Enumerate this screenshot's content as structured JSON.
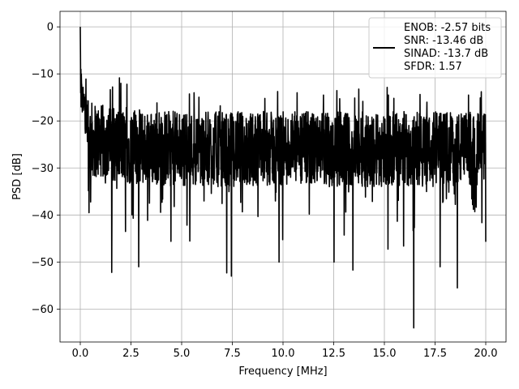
{
  "chart_data": {
    "type": "line",
    "xlabel": "Frequency [MHz]",
    "ylabel": "PSD [dB]",
    "xlim": [
      -1.0,
      21.0
    ],
    "ylim": [
      -67.0,
      3.3
    ],
    "xticks": [
      0.0,
      2.5,
      5.0,
      7.5,
      10.0,
      12.5,
      15.0,
      17.5,
      20.0
    ],
    "xtick_labels": [
      "0.0",
      "2.5",
      "5.0",
      "7.5",
      "10.0",
      "12.5",
      "15.0",
      "17.5",
      "20.0"
    ],
    "yticks": [
      0,
      -10,
      -20,
      -30,
      -40,
      -50,
      -60
    ],
    "ytick_labels": [
      "0",
      "−10",
      "−20",
      "−30",
      "−40",
      "−50",
      "−60"
    ],
    "grid": true,
    "legend_position": "top-right",
    "series": [
      {
        "color": "#000000",
        "x_start": 0.0,
        "x_end": 20.0,
        "points": 2000,
        "peak": [
          0.0,
          0.0
        ],
        "noise_floor_range": [
          -17,
          -35
        ],
        "notable_dips": [
          [
            0.43,
            -39.5
          ],
          [
            1.55,
            -52.2
          ],
          [
            2.88,
            -51.0
          ],
          [
            4.47,
            -45.6
          ],
          [
            7.22,
            -52.3
          ],
          [
            7.45,
            -53.0
          ],
          [
            9.8,
            -50.0
          ],
          [
            12.52,
            -50.0
          ],
          [
            13.45,
            -51.7
          ],
          [
            16.45,
            -64.0
          ],
          [
            17.75,
            -51.0
          ],
          [
            18.6,
            -55.5
          ],
          [
            20.0,
            -45.7
          ]
        ],
        "notable_peaks": [
          [
            0.05,
            -10.0
          ],
          [
            2.0,
            -12.0
          ],
          [
            2.3,
            -12.2
          ],
          [
            9.1,
            -15.2
          ],
          [
            10.7,
            -14.0
          ],
          [
            12.0,
            -14.5
          ],
          [
            15.2,
            -14.5
          ],
          [
            17.1,
            -16.0
          ],
          [
            19.15,
            -14.5
          ]
        ]
      }
    ],
    "legend": {
      "lines": [
        "ENOB: -2.57 bits",
        "SNR: -13.46 dB",
        "SINAD: -13.7 dB",
        "SFDR: 1.57"
      ]
    }
  }
}
